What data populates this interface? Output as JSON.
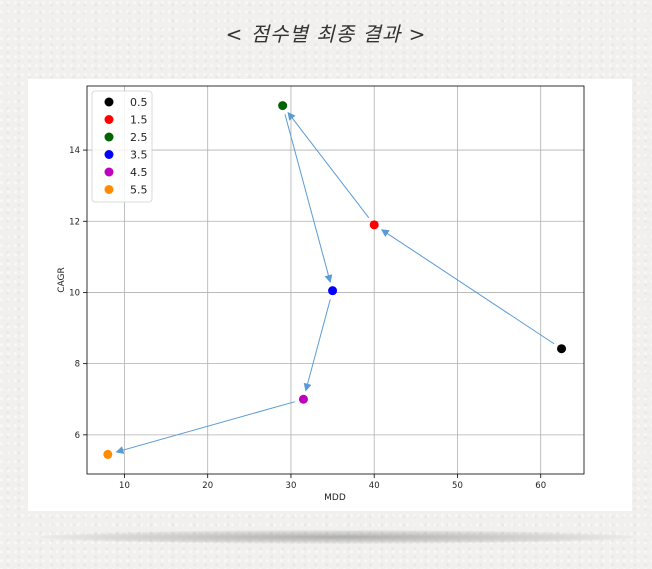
{
  "heading": "< 점수별 최종 결과 >",
  "chart_data": {
    "type": "scatter",
    "title": "",
    "xlabel": "MDD",
    "ylabel": "CAGR",
    "xlim": [
      5.5,
      65.2
    ],
    "ylim": [
      4.9,
      15.8
    ],
    "xticks": [
      10,
      20,
      30,
      40,
      50,
      60
    ],
    "yticks": [
      6,
      8,
      10,
      12,
      14
    ],
    "grid": true,
    "legend_position": "top-left",
    "series": [
      {
        "name": "0.5",
        "x": 62.5,
        "y": 8.42,
        "color": "#000000"
      },
      {
        "name": "1.5",
        "x": 40.0,
        "y": 11.9,
        "color": "#ff0000"
      },
      {
        "name": "2.5",
        "x": 29.0,
        "y": 15.25,
        "color": "#006400"
      },
      {
        "name": "3.5",
        "x": 35.0,
        "y": 10.05,
        "color": "#0000ff"
      },
      {
        "name": "4.5",
        "x": 31.5,
        "y": 7.0,
        "color": "#bf00bf"
      },
      {
        "name": "5.5",
        "x": 8.0,
        "y": 5.45,
        "color": "#ff8c00"
      }
    ],
    "arrows": [
      {
        "from": "0.5",
        "to": "1.5"
      },
      {
        "from": "1.5",
        "to": "2.5"
      },
      {
        "from": "2.5",
        "to": "3.5"
      },
      {
        "from": "3.5",
        "to": "4.5"
      },
      {
        "from": "4.5",
        "to": "5.5"
      }
    ],
    "arrow_color": "#5b9bd5"
  }
}
